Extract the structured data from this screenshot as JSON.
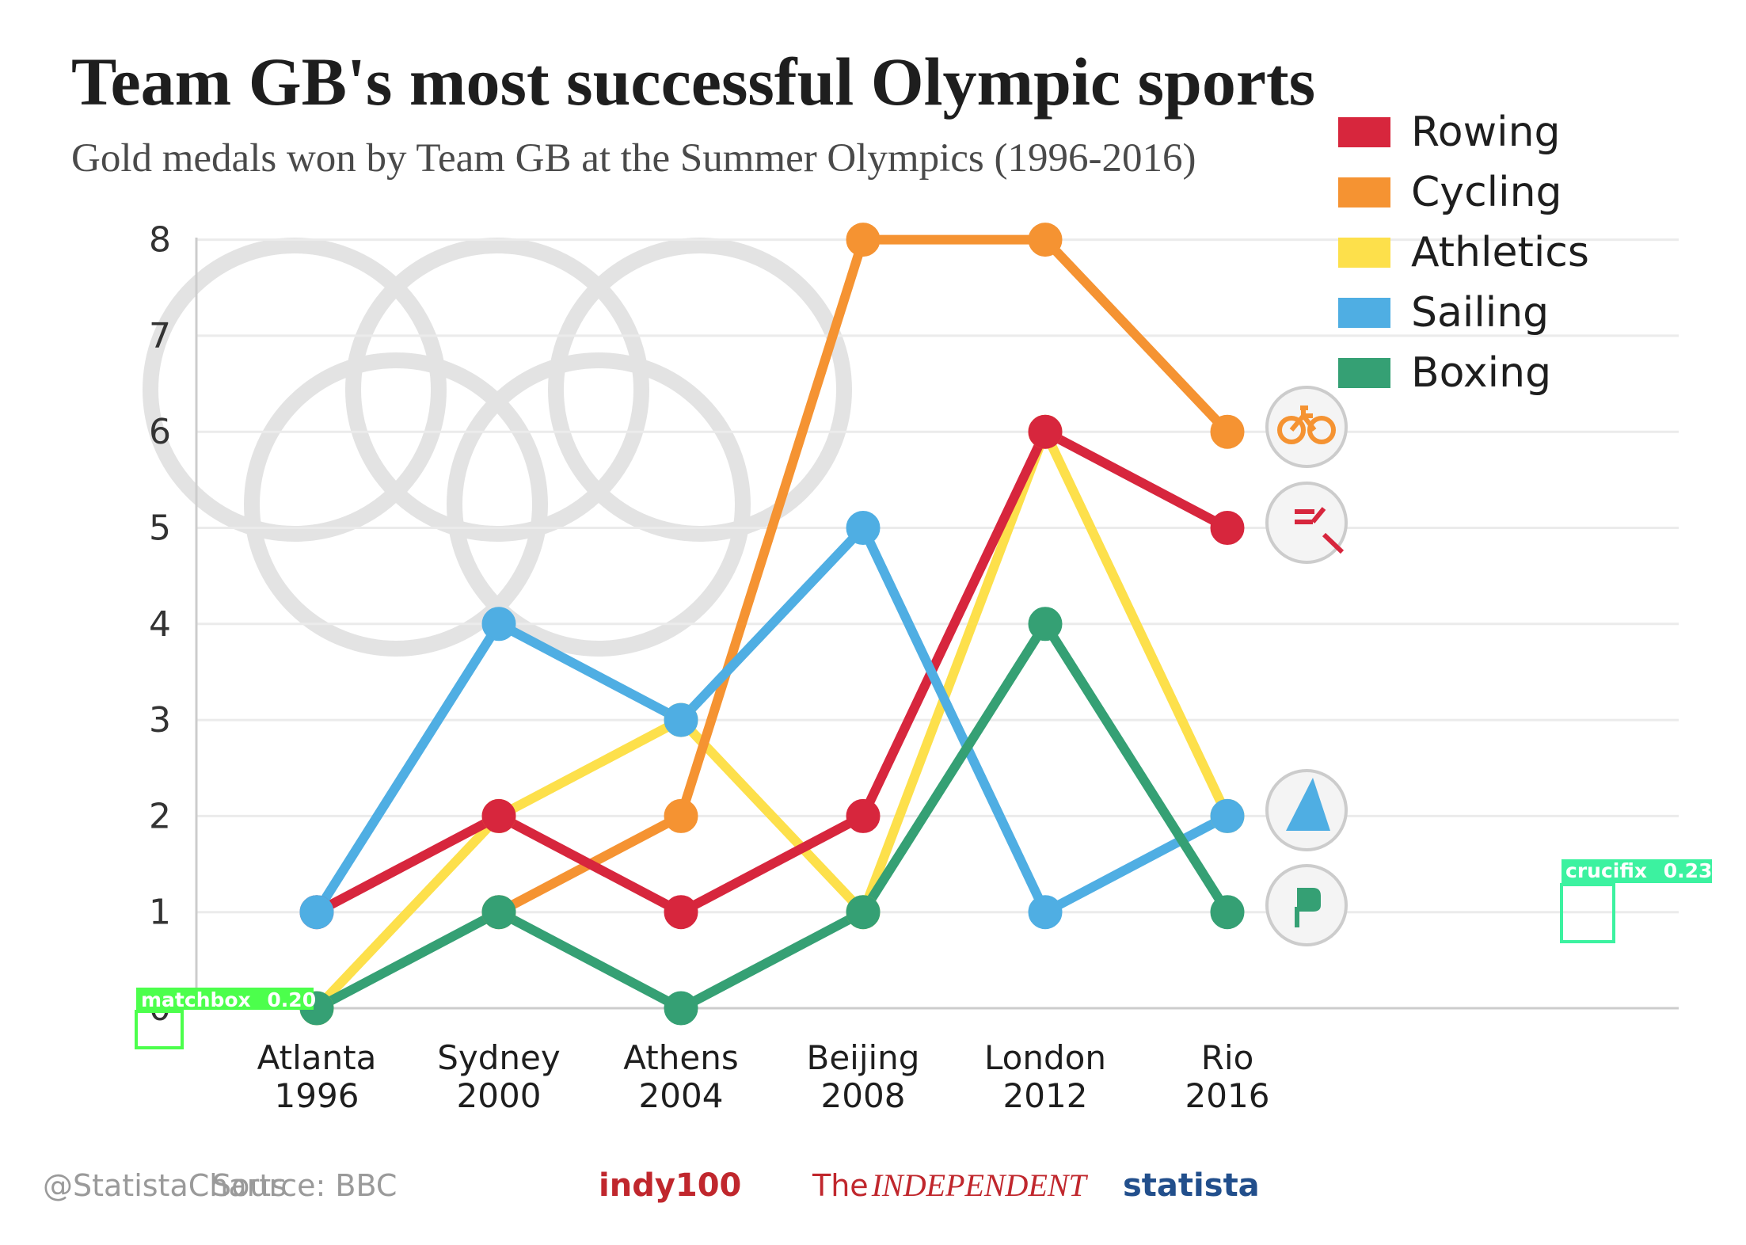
{
  "chart_data": {
    "type": "line",
    "title": "Team GB's most successful Olympic sports",
    "subtitle": "Gold medals won by Team GB at the Summer Olympics (1996-2016)",
    "categories": [
      {
        "city": "Atlanta",
        "year": "1996"
      },
      {
        "city": "Sydney",
        "year": "2000"
      },
      {
        "city": "Athens",
        "year": "2004"
      },
      {
        "city": "Beijing",
        "year": "2008"
      },
      {
        "city": "London",
        "year": "2012"
      },
      {
        "city": "Rio",
        "year": "2016"
      }
    ],
    "ylim": [
      0,
      8
    ],
    "yticks": [
      "0",
      "1",
      "2",
      "3",
      "4",
      "5",
      "6",
      "7",
      "8"
    ],
    "grid": true,
    "legend_position": "top-right",
    "series": [
      {
        "name": "Rowing",
        "color": "#d7263d",
        "values": [
          1,
          2,
          1,
          2,
          6,
          5
        ],
        "icon": "rowing-icon"
      },
      {
        "name": "Cycling",
        "color": "#f59332",
        "values": [
          null,
          1,
          2,
          8,
          8,
          6
        ],
        "icon": "cycling-icon"
      },
      {
        "name": "Athletics",
        "color": "#fde04b",
        "values": [
          0,
          2,
          3,
          1,
          6,
          2
        ],
        "icon": null
      },
      {
        "name": "Sailing",
        "color": "#4faee3",
        "values": [
          1,
          4,
          3,
          5,
          1,
          2
        ],
        "icon": "sailing-icon"
      },
      {
        "name": "Boxing",
        "color": "#35a074",
        "values": [
          0,
          1,
          0,
          1,
          4,
          1
        ],
        "icon": "boxing-icon"
      }
    ],
    "draw_order": [
      2,
      1,
      0,
      3,
      4
    ],
    "background": "olympic-rings-watermark"
  },
  "footer": {
    "handle": "@StatistaCharts",
    "source": "Source: BBC",
    "brand_indy": "indy100",
    "brand_independent_the": "The",
    "brand_independent": "INDEPENDENT",
    "brand_statista": "statista"
  },
  "detections": [
    {
      "label": "matchbox",
      "score": "0.20",
      "color": "#4cff4c"
    },
    {
      "label": "crucifix",
      "score": "0.23",
      "color": "#3cf2a0"
    }
  ]
}
